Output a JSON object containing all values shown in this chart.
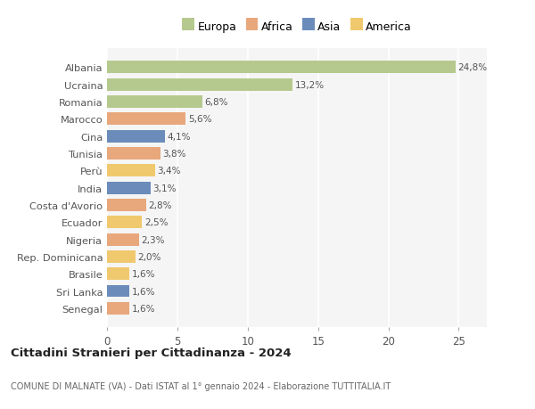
{
  "categories": [
    "Albania",
    "Ucraina",
    "Romania",
    "Marocco",
    "Cina",
    "Tunisia",
    "Perù",
    "India",
    "Costa d'Avorio",
    "Ecuador",
    "Nigeria",
    "Rep. Dominicana",
    "Brasile",
    "Sri Lanka",
    "Senegal"
  ],
  "values": [
    24.8,
    13.2,
    6.8,
    5.6,
    4.1,
    3.8,
    3.4,
    3.1,
    2.8,
    2.5,
    2.3,
    2.0,
    1.6,
    1.6,
    1.6
  ],
  "labels": [
    "24,8%",
    "13,2%",
    "6,8%",
    "5,6%",
    "4,1%",
    "3,8%",
    "3,4%",
    "3,1%",
    "2,8%",
    "2,5%",
    "2,3%",
    "2,0%",
    "1,6%",
    "1,6%",
    "1,6%"
  ],
  "colors": [
    "#b5c98e",
    "#b5c98e",
    "#b5c98e",
    "#e8a87c",
    "#6b8cba",
    "#e8a87c",
    "#f0c96e",
    "#6b8cba",
    "#e8a87c",
    "#f0c96e",
    "#e8a87c",
    "#f0c96e",
    "#f0c96e",
    "#6b8cba",
    "#e8a87c"
  ],
  "legend_labels": [
    "Europa",
    "Africa",
    "Asia",
    "America"
  ],
  "legend_colors": [
    "#b5c98e",
    "#e8a87c",
    "#6b8cba",
    "#f0c96e"
  ],
  "title": "Cittadini Stranieri per Cittadinanza - 2024",
  "subtitle": "COMUNE DI MALNATE (VA) - Dati ISTAT al 1° gennaio 2024 - Elaborazione TUTTITALIA.IT",
  "xlim": [
    0,
    27
  ],
  "xticks": [
    0,
    5,
    10,
    15,
    20,
    25
  ],
  "background_color": "#ffffff",
  "plot_bg_color": "#f5f5f5",
  "grid_color": "#ffffff"
}
